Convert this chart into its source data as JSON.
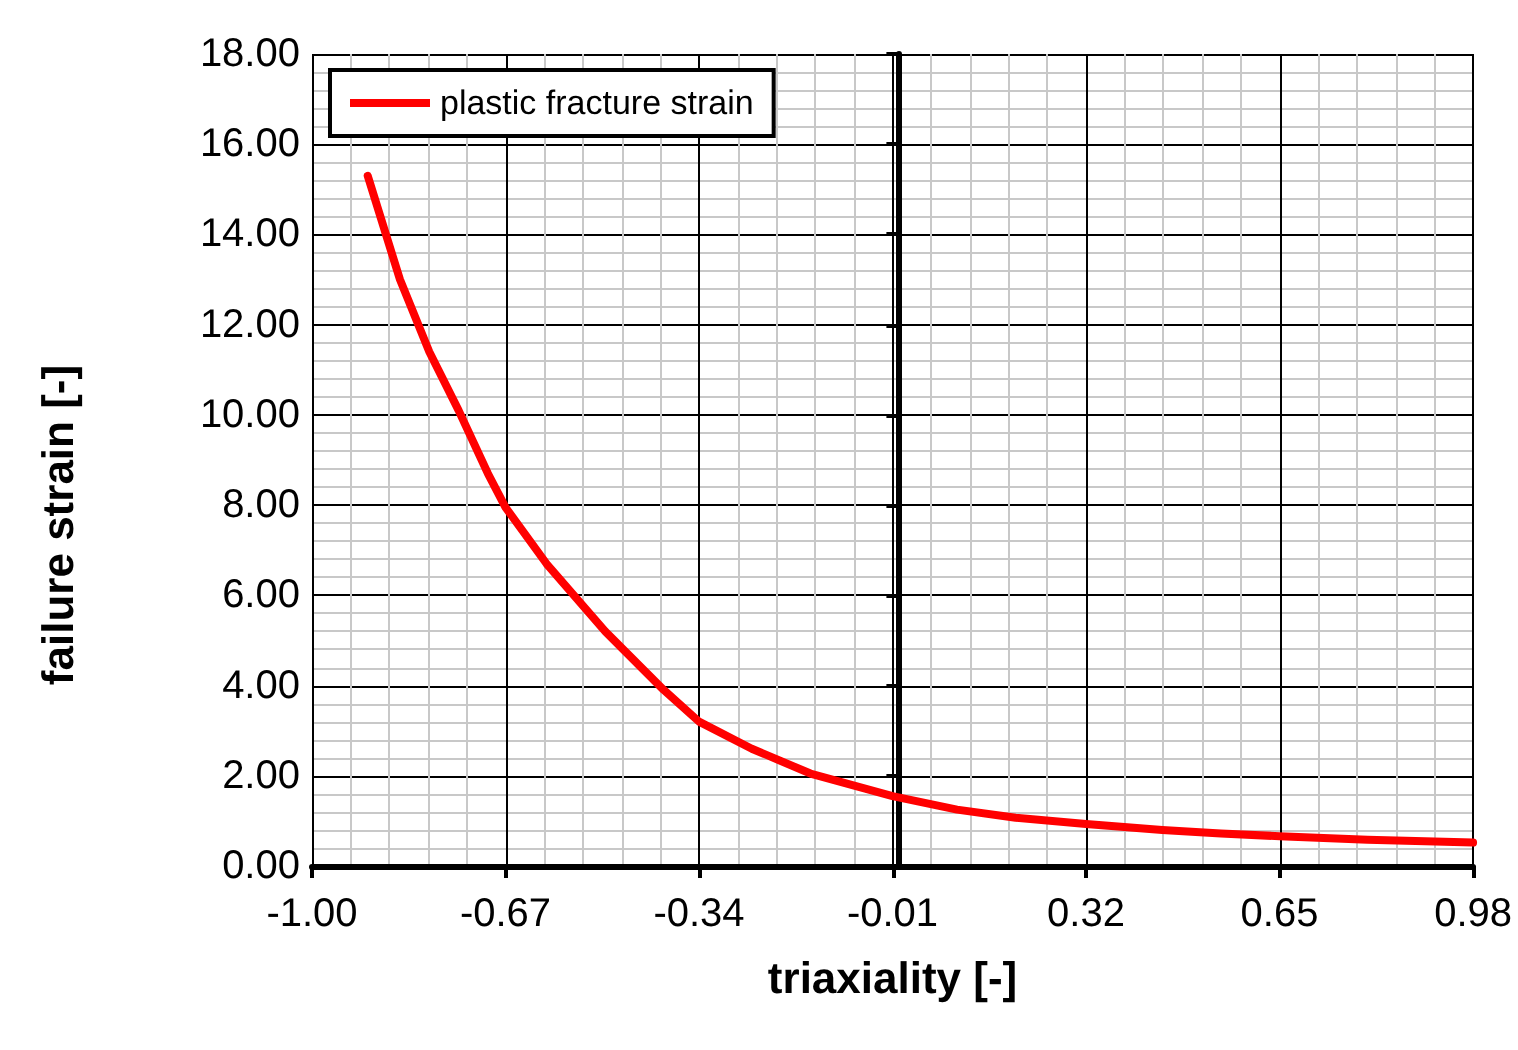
{
  "chart_data": {
    "type": "line",
    "xlabel": "triaxiality [-]",
    "ylabel": "failure strain [-]",
    "x": [
      -0.905,
      -0.85,
      -0.8,
      -0.75,
      -0.7,
      -0.67,
      -0.6,
      -0.5,
      -0.4,
      -0.34,
      -0.25,
      -0.15,
      -0.01,
      0.1,
      0.2,
      0.32,
      0.45,
      0.55,
      0.65,
      0.8,
      0.98
    ],
    "series": [
      {
        "name": "plastic fracture strain",
        "color": "#ff0000",
        "values": [
          15.3,
          13.0,
          11.4,
          10.1,
          8.7,
          7.95,
          6.7,
          5.2,
          3.9,
          3.2,
          2.6,
          2.05,
          1.55,
          1.25,
          1.07,
          0.93,
          0.8,
          0.72,
          0.66,
          0.58,
          0.52
        ]
      }
    ],
    "xlim": [
      -1.0,
      0.98
    ],
    "xticks": [
      {
        "value": -1.0,
        "label": "-1.00"
      },
      {
        "value": -0.67,
        "label": "-0.67"
      },
      {
        "value": -0.34,
        "label": "-0.34"
      },
      {
        "value": -0.01,
        "label": "-0.01"
      },
      {
        "value": 0.32,
        "label": "0.32"
      },
      {
        "value": 0.65,
        "label": "0.65"
      },
      {
        "value": 0.98,
        "label": "0.98"
      }
    ],
    "ylim": [
      0,
      18
    ],
    "yticks": [
      {
        "value": 0,
        "label": "0.00"
      },
      {
        "value": 2,
        "label": "2.00"
      },
      {
        "value": 4,
        "label": "4.00"
      },
      {
        "value": 6,
        "label": "6.00"
      },
      {
        "value": 8,
        "label": "8.00"
      },
      {
        "value": 10,
        "label": "10.00"
      },
      {
        "value": 12,
        "label": "12.00"
      },
      {
        "value": 14,
        "label": "14.00"
      },
      {
        "value": 16,
        "label": "16.00"
      },
      {
        "value": 18,
        "label": "18.00"
      }
    ],
    "grid": true,
    "legend": "top left",
    "marker": "none",
    "line_style": "solid"
  }
}
